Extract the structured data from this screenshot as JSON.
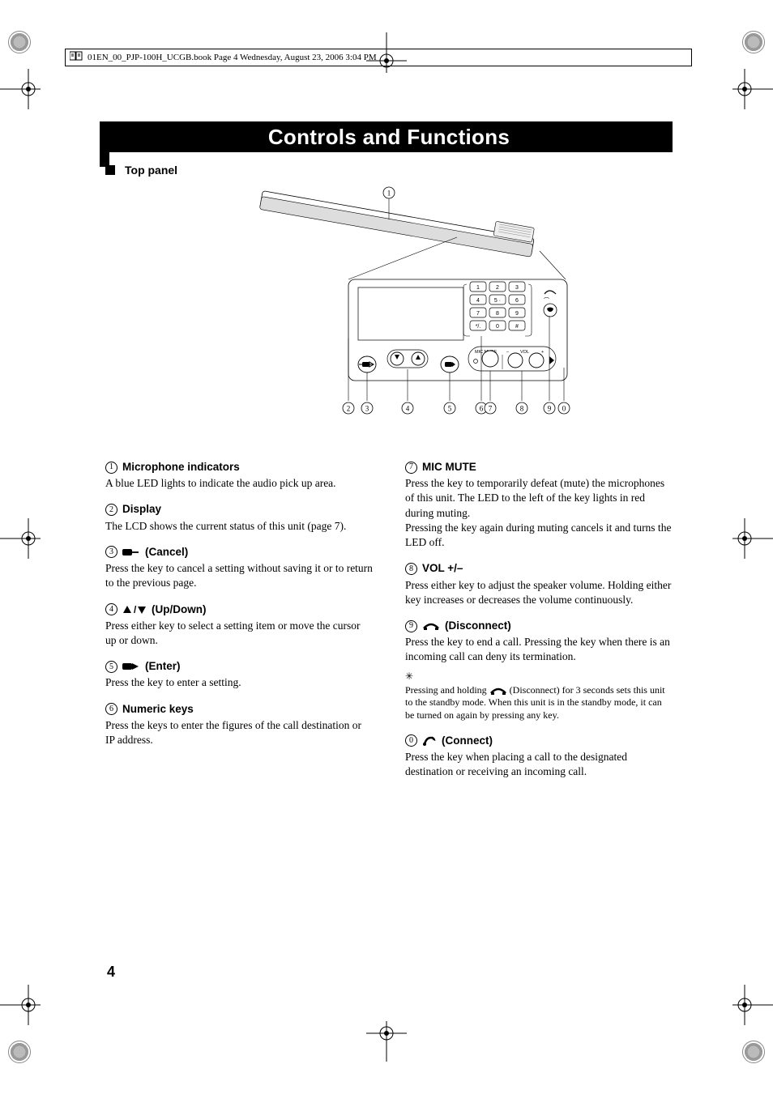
{
  "header": {
    "text": "01EN_00_PJP-100H_UCGB.book  Page 4  Wednesday, August 23, 2006  3:04 PM"
  },
  "title": "Controls and Functions",
  "section": "Top panel",
  "page_number": "4",
  "diagram": {
    "keypad": [
      "1",
      "2",
      "3",
      "4",
      "5 ·",
      "6",
      "7",
      "8",
      "9",
      "*/.",
      "0",
      "#"
    ],
    "labels": {
      "mic_mute": "MIC MUTE",
      "vol": "VOL",
      "minus": "–",
      "plus": "+"
    },
    "callouts": [
      "1",
      "2",
      "3",
      "4",
      "5",
      "6",
      "7",
      "8",
      "9",
      "0"
    ]
  },
  "left": [
    {
      "n": "1",
      "title": "Microphone indicators",
      "body": "A blue LED lights to indicate the audio pick up area."
    },
    {
      "n": "2",
      "title": "Display",
      "body": "The LCD shows the current status of this unit (page 7)."
    },
    {
      "n": "3",
      "icon": "cancel",
      "title": "(Cancel)",
      "body": "Press the key to cancel a setting without saving it or to return to the previous page."
    },
    {
      "n": "4",
      "icon": "updown",
      "title": "(Up/Down)",
      "body": "Press either key to select a setting item or move the cursor up or down."
    },
    {
      "n": "5",
      "icon": "enter",
      "title": "(Enter)",
      "body": "Press the key to enter a setting."
    },
    {
      "n": "6",
      "title": "Numeric keys",
      "body": "Press the keys to enter the figures of the call destination or IP address."
    }
  ],
  "right": [
    {
      "n": "7",
      "title": "MIC MUTE",
      "body": "Press the key to temporarily defeat (mute) the microphones of this unit. The LED to the left of the key lights in red during muting.\nPressing the key again during muting cancels it and turns the LED off."
    },
    {
      "n": "8",
      "title": "VOL +/–",
      "body": "Press either key to adjust the speaker volume. Holding either key increases or decreases the volume continuously."
    },
    {
      "n": "9",
      "icon": "disconnect",
      "title": "(Disconnect)",
      "body": "Press the key to end a call. Pressing the key when there is an incoming call can deny its termination.",
      "tip": "Pressing and holding        (Disconnect) for 3 seconds sets this unit to the standby mode. When this unit is in the standby mode, it can be turned on again by pressing any key."
    },
    {
      "n": "0",
      "icon": "connect",
      "title": "(Connect)",
      "body": "Press the key when placing a call to the designated destination or receiving an incoming call."
    }
  ]
}
